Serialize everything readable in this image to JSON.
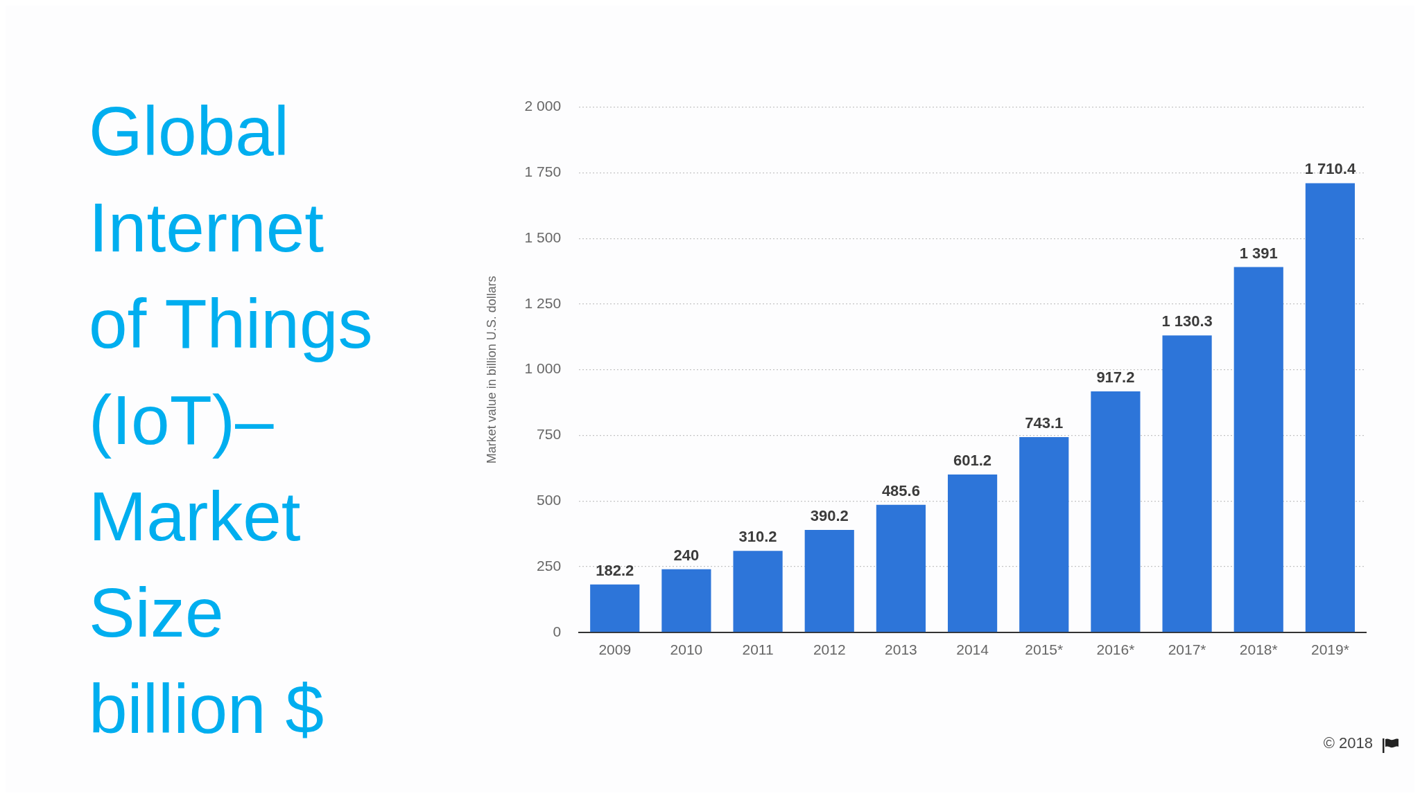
{
  "chart_data": {
    "type": "bar",
    "title": "Global Internet of Things (IoT)– Market Size billion $",
    "ylabel": "Market value in billion U.S. dollars",
    "categories": [
      "2009",
      "2010",
      "2011",
      "2012",
      "2013",
      "2014",
      "2015*",
      "2016*",
      "2017*",
      "2018*",
      "2019*"
    ],
    "values": [
      182.2,
      240,
      310.2,
      390.2,
      485.6,
      601.2,
      743.1,
      917.2,
      1130.3,
      1391,
      1710.4
    ],
    "value_labels": [
      "182.2",
      "240",
      "310.2",
      "390.2",
      "485.6",
      "601.2",
      "743.1",
      "917.2",
      "1 130.3",
      "1 391",
      "1 710.4"
    ],
    "color": "#2d75d9",
    "ylim": [
      0,
      2000
    ],
    "yticks": [
      0,
      250,
      500,
      750,
      {
        "value": 1000,
        "label": "1 000"
      },
      {
        "value": 1250,
        "label": "1 250"
      },
      {
        "value": 1500,
        "label": "1 500"
      },
      {
        "value": 1750,
        "label": "1 750"
      },
      {
        "value": 2000,
        "label": "2 000"
      }
    ],
    "grid": "y",
    "annotations": [
      "© 2018"
    ]
  }
}
